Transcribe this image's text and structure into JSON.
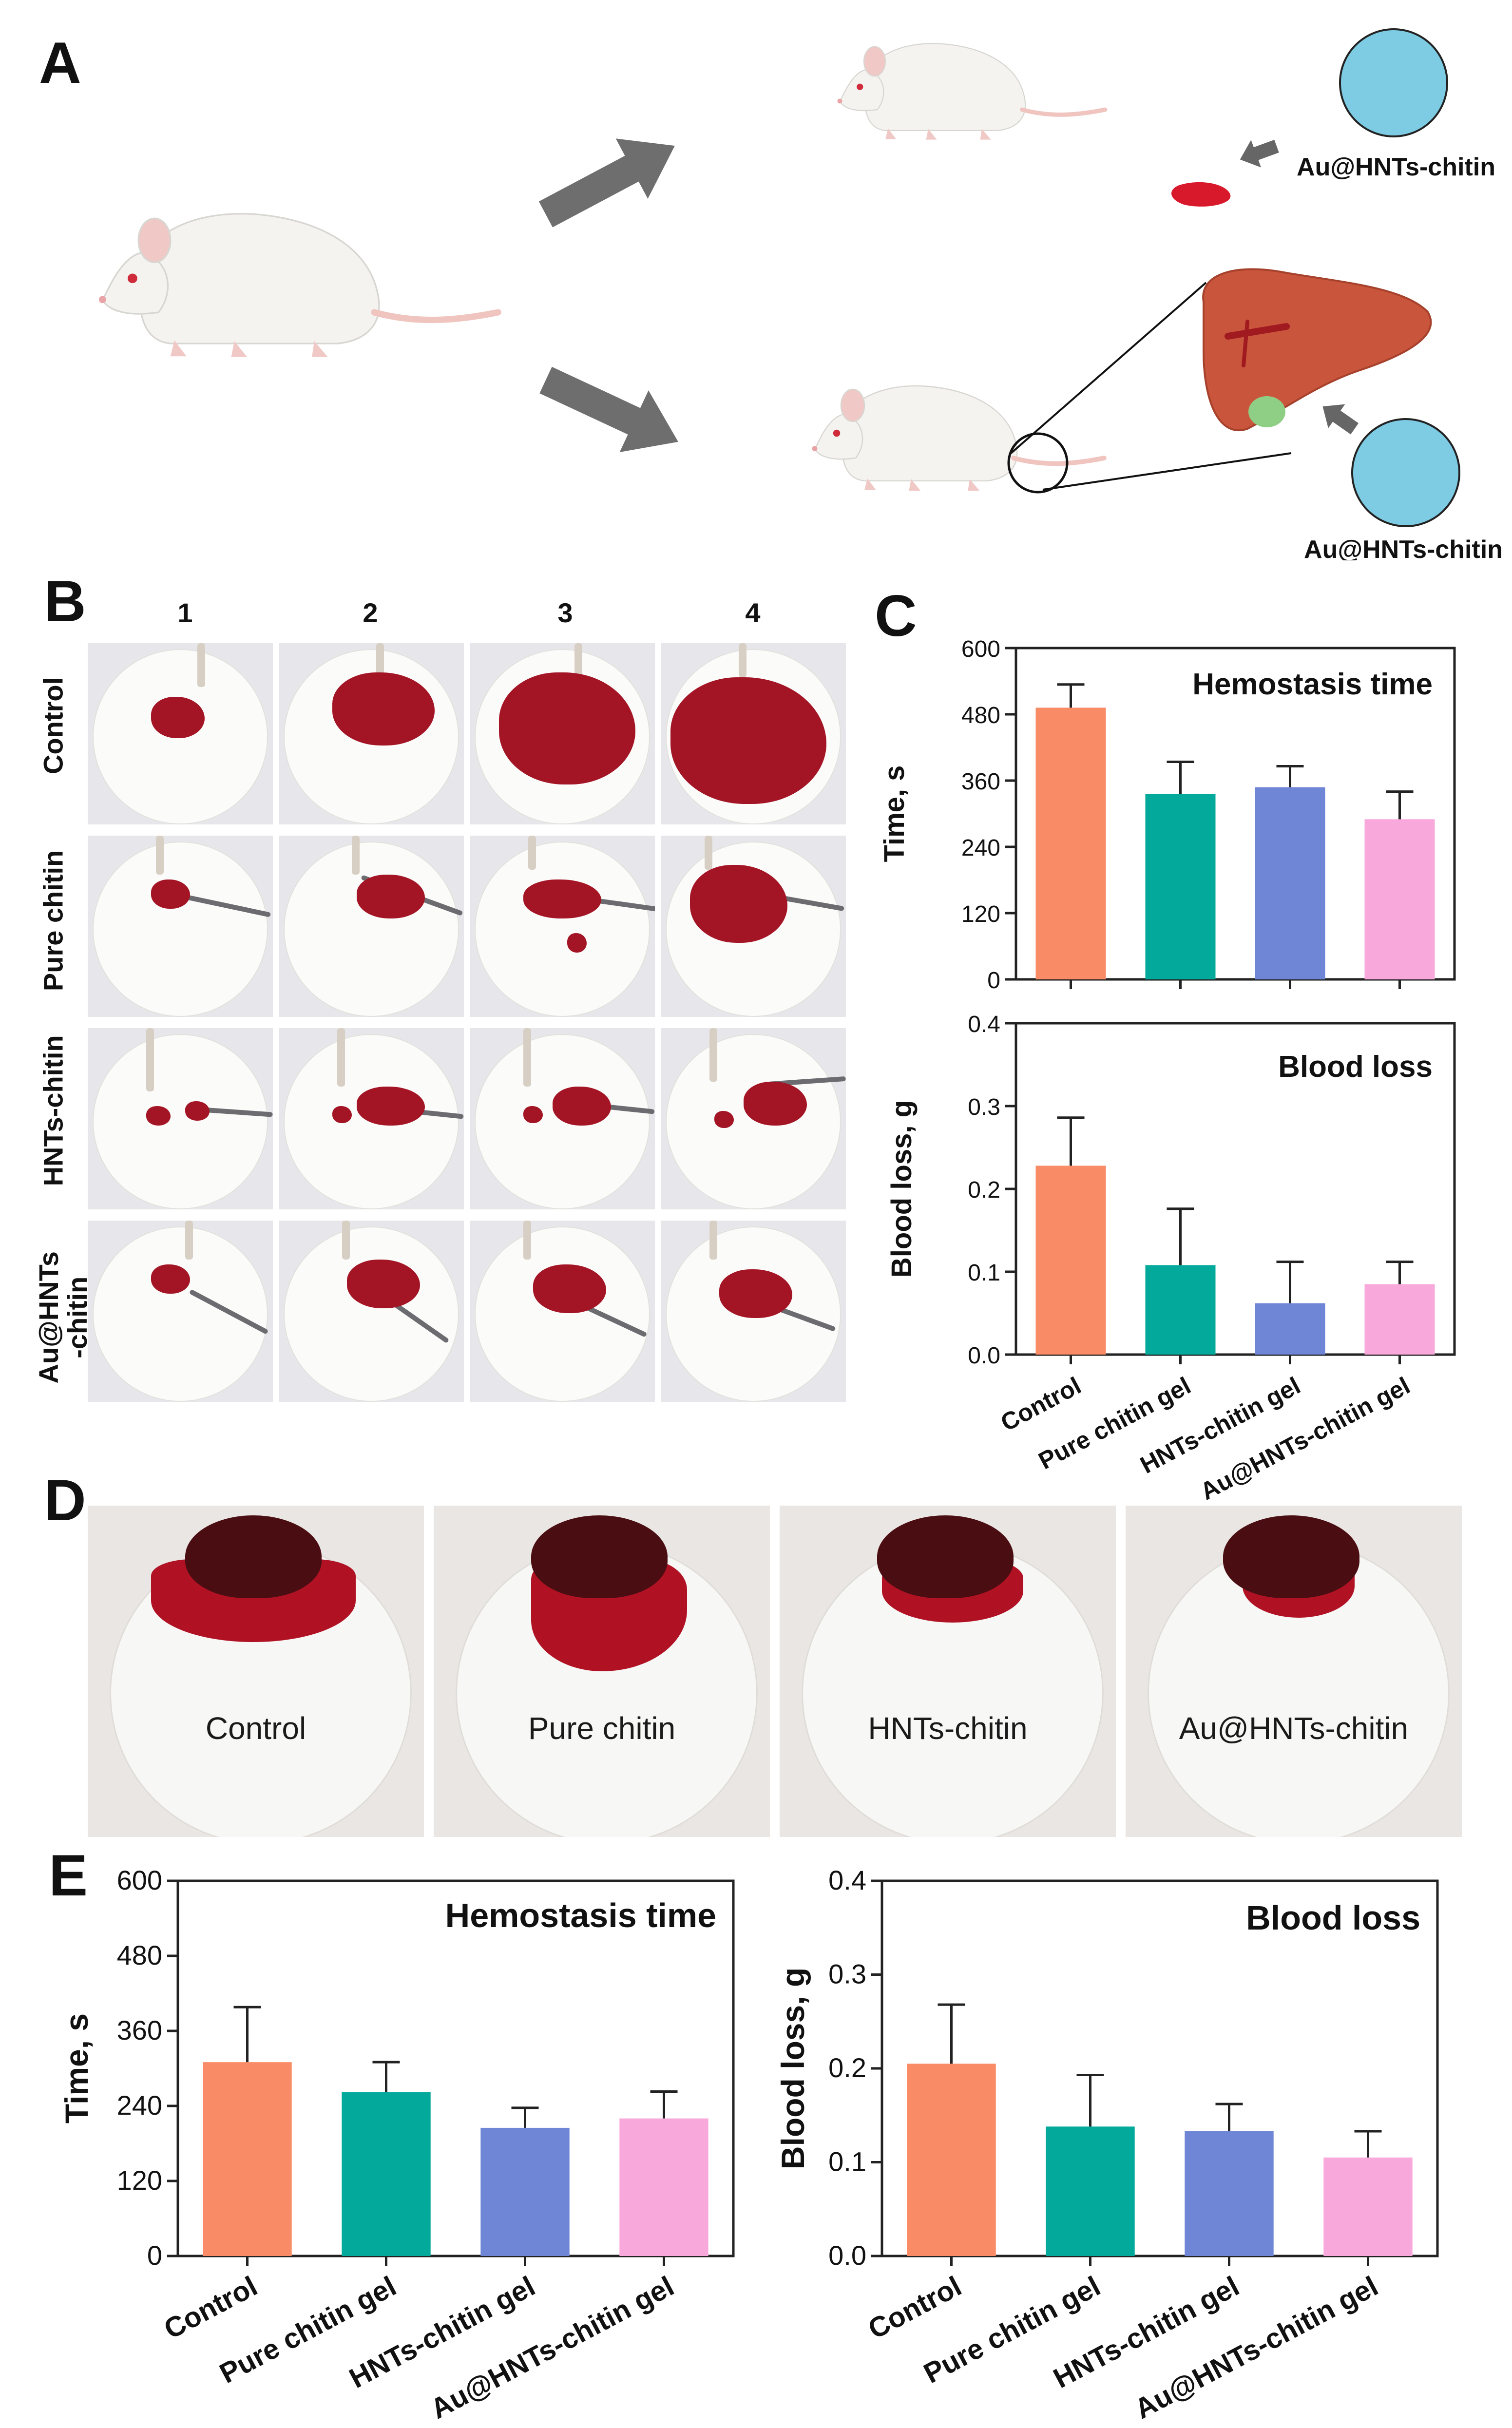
{
  "panel_labels": {
    "a": "A",
    "b": "B",
    "c": "C",
    "d": "D",
    "e": "E"
  },
  "panel_a": {
    "label_top": "Au@HNTs-chitin",
    "label_bottom": "Au@HNTs-chitin"
  },
  "panel_b": {
    "columns": [
      "1",
      "2",
      "3",
      "4"
    ],
    "rows": [
      "Control",
      "Pure chitin",
      "HNTs-chitin",
      "Au@HNTs\n-chitin"
    ]
  },
  "panel_d": {
    "labels": [
      "Control",
      "Pure chitin",
      "HNTs-chitin",
      "Au@HNTs-chitin"
    ]
  },
  "colors": {
    "control": "#f98b66",
    "pure_chitin": "#03a99a",
    "hnts_chitin": "#6f86d6",
    "au_hnts_chitin": "#f9a8dc",
    "disc": "#7ecbe4",
    "blood": "#a31425"
  },
  "chart_data": [
    {
      "id": "c_time",
      "type": "bar",
      "title": "Hemostasis time",
      "ylabel": "Time, s",
      "categories": [
        "Control",
        "Pure chitin gel",
        "HNTs-chitin gel",
        "Au@HNTs-chitin gel"
      ],
      "values": [
        492,
        336,
        348,
        290
      ],
      "errors": [
        42,
        58,
        38,
        50
      ],
      "ylim": [
        0,
        600
      ],
      "yticks": [
        "0",
        "120",
        "240",
        "360",
        "480",
        "600"
      ],
      "show_xlabels": false
    },
    {
      "id": "c_loss",
      "type": "bar",
      "title": "Blood loss",
      "ylabel": "Blood loss, g",
      "categories": [
        "Control",
        "Pure chitin gel",
        "HNTs-chitin gel",
        "Au@HNTs-chitin gel"
      ],
      "values": [
        0.228,
        0.108,
        0.062,
        0.085
      ],
      "errors": [
        0.058,
        0.068,
        0.05,
        0.027
      ],
      "ylim": [
        0,
        0.4
      ],
      "yticks": [
        "0.0",
        "0.1",
        "0.2",
        "0.3",
        "0.4"
      ],
      "show_xlabels": true
    },
    {
      "id": "e_time",
      "type": "bar",
      "title": "Hemostasis time",
      "ylabel": "Time, s",
      "categories": [
        "Control",
        "Pure chitin gel",
        "HNTs-chitin gel",
        "Au@HNTs-chitin gel"
      ],
      "values": [
        310,
        262,
        205,
        220
      ],
      "errors": [
        88,
        48,
        32,
        43
      ],
      "ylim": [
        0,
        600
      ],
      "yticks": [
        "0",
        "120",
        "240",
        "360",
        "480",
        "600"
      ],
      "show_xlabels": true
    },
    {
      "id": "e_loss",
      "type": "bar",
      "title": "Blood loss",
      "ylabel": "Blood loss, g",
      "categories": [
        "Control",
        "Pure chitin gel",
        "HNTs-chitin gel",
        "Au@HNTs-chitin gel"
      ],
      "values": [
        0.205,
        0.138,
        0.133,
        0.105
      ],
      "errors": [
        0.063,
        0.055,
        0.029,
        0.028
      ],
      "ylim": [
        0,
        0.4
      ],
      "yticks": [
        "0.0",
        "0.1",
        "0.2",
        "0.3",
        "0.4"
      ],
      "show_xlabels": true
    }
  ]
}
